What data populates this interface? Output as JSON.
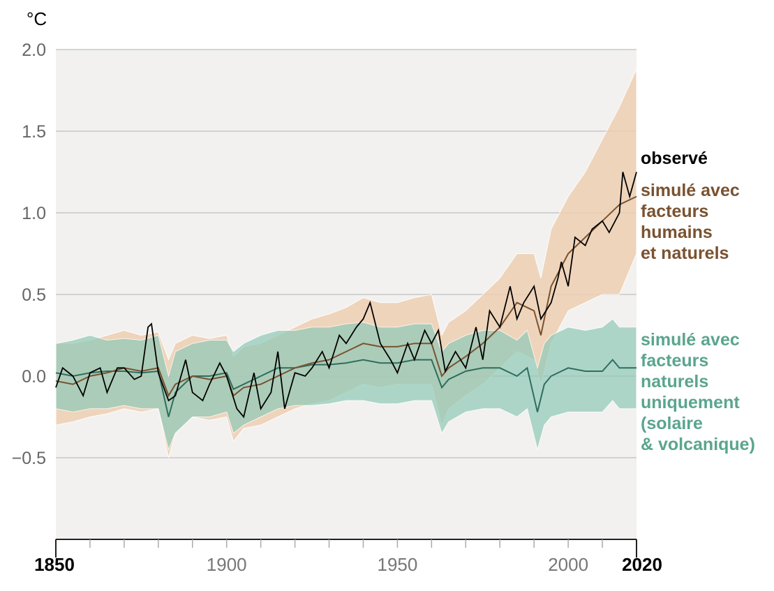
{
  "chart_data": {
    "type": "line",
    "unit": "°C",
    "xlim": [
      1850,
      2020
    ],
    "ylim": [
      -1.0,
      2.0
    ],
    "yticks": [
      {
        "v": 2.0,
        "label": "2.0"
      },
      {
        "v": 1.5,
        "label": "1.5"
      },
      {
        "v": 1.0,
        "label": "1.0"
      },
      {
        "v": 0.5,
        "label": "0.5"
      },
      {
        "v": 0.0,
        "label": "0.0"
      },
      {
        "v": -0.5,
        "label": "−0.5"
      }
    ],
    "xticks": [
      {
        "v": 1850,
        "label": "1850",
        "bold": true
      },
      {
        "v": 1900,
        "label": "1900"
      },
      {
        "v": 1950,
        "label": "1950"
      },
      {
        "v": 2000,
        "label": "2000"
      },
      {
        "v": 2020,
        "label": "2020",
        "bold": true
      }
    ],
    "grid": true,
    "colors": {
      "observed": "#000000",
      "human_natural": "#7a5230",
      "human_natural_band": "#eecfb2",
      "natural": "#2e6e5e",
      "natural_band": "#8fcab8",
      "natural_label": "#5aa58e",
      "human_label": "#7a5230",
      "background": "#f2f1ef"
    },
    "series": [
      {
        "name": "observé",
        "key": "observed",
        "x": [
          1850,
          1852,
          1855,
          1858,
          1860,
          1863,
          1865,
          1868,
          1870,
          1873,
          1875,
          1877,
          1878,
          1880,
          1883,
          1885,
          1888,
          1890,
          1893,
          1895,
          1898,
          1900,
          1903,
          1905,
          1908,
          1910,
          1913,
          1915,
          1917,
          1920,
          1923,
          1925,
          1928,
          1930,
          1933,
          1935,
          1938,
          1940,
          1942,
          1945,
          1948,
          1950,
          1953,
          1955,
          1958,
          1960,
          1962,
          1964,
          1967,
          1970,
          1973,
          1975,
          1977,
          1980,
          1983,
          1985,
          1987,
          1990,
          1992,
          1995,
          1997,
          1998,
          2000,
          2002,
          2005,
          2007,
          2010,
          2012,
          2015,
          2016,
          2018,
          2020
        ],
        "y": [
          -0.07,
          0.05,
          0.0,
          -0.12,
          0.02,
          0.05,
          -0.1,
          0.05,
          0.05,
          -0.02,
          0.0,
          0.3,
          0.32,
          0.02,
          -0.15,
          -0.12,
          0.1,
          -0.1,
          -0.15,
          -0.05,
          0.08,
          0.0,
          -0.2,
          -0.25,
          0.02,
          -0.2,
          -0.1,
          0.15,
          -0.2,
          0.02,
          0.0,
          0.05,
          0.15,
          0.05,
          0.25,
          0.2,
          0.3,
          0.35,
          0.45,
          0.2,
          0.1,
          0.02,
          0.2,
          0.1,
          0.28,
          0.2,
          0.28,
          0.03,
          0.15,
          0.05,
          0.3,
          0.1,
          0.4,
          0.3,
          0.55,
          0.35,
          0.45,
          0.55,
          0.35,
          0.45,
          0.6,
          0.7,
          0.55,
          0.85,
          0.8,
          0.9,
          0.95,
          0.88,
          1.0,
          1.25,
          1.1,
          1.25
        ]
      },
      {
        "name": "simulé avec facteurs humains et naturels",
        "key": "human_natural",
        "x": [
          1850,
          1855,
          1860,
          1865,
          1870,
          1875,
          1880,
          1883,
          1885,
          1890,
          1895,
          1900,
          1902,
          1905,
          1910,
          1915,
          1920,
          1925,
          1930,
          1935,
          1940,
          1945,
          1950,
          1955,
          1960,
          1963,
          1965,
          1970,
          1975,
          1980,
          1985,
          1990,
          1992,
          1995,
          2000,
          2005,
          2010,
          2015,
          2020
        ],
        "y": [
          -0.03,
          -0.05,
          0.0,
          0.02,
          0.05,
          0.03,
          0.05,
          -0.12,
          -0.05,
          0.0,
          -0.02,
          0.0,
          -0.12,
          -0.07,
          -0.05,
          0.0,
          0.05,
          0.08,
          0.1,
          0.15,
          0.2,
          0.18,
          0.18,
          0.2,
          0.2,
          0.0,
          0.05,
          0.12,
          0.2,
          0.3,
          0.45,
          0.4,
          0.25,
          0.55,
          0.75,
          0.85,
          0.95,
          1.05,
          1.1
        ],
        "low": [
          -0.3,
          -0.28,
          -0.25,
          -0.23,
          -0.2,
          -0.22,
          -0.2,
          -0.5,
          -0.35,
          -0.25,
          -0.27,
          -0.25,
          -0.4,
          -0.32,
          -0.3,
          -0.25,
          -0.2,
          -0.17,
          -0.15,
          -0.1,
          -0.05,
          -0.07,
          -0.05,
          -0.05,
          -0.05,
          -0.3,
          -0.2,
          -0.12,
          -0.05,
          0.05,
          0.15,
          0.1,
          -0.05,
          0.2,
          0.4,
          0.45,
          0.5,
          0.5,
          0.75
        ],
        "high": [
          0.2,
          0.2,
          0.22,
          0.25,
          0.28,
          0.25,
          0.27,
          0.1,
          0.2,
          0.25,
          0.23,
          0.25,
          0.12,
          0.18,
          0.2,
          0.25,
          0.3,
          0.35,
          0.38,
          0.42,
          0.48,
          0.45,
          0.45,
          0.48,
          0.5,
          0.25,
          0.33,
          0.4,
          0.5,
          0.6,
          0.75,
          0.75,
          0.6,
          0.9,
          1.1,
          1.25,
          1.45,
          1.65,
          1.88
        ]
      },
      {
        "name": "simulé avec facteurs naturels uniquement (solaire & volcanique)",
        "key": "natural",
        "x": [
          1850,
          1855,
          1860,
          1865,
          1870,
          1875,
          1880,
          1883,
          1885,
          1890,
          1895,
          1900,
          1902,
          1905,
          1910,
          1915,
          1920,
          1925,
          1930,
          1935,
          1940,
          1945,
          1950,
          1955,
          1960,
          1963,
          1965,
          1970,
          1975,
          1980,
          1985,
          1988,
          1991,
          1993,
          1995,
          2000,
          2005,
          2010,
          2013,
          2015,
          2020
        ],
        "y": [
          0.02,
          0.0,
          0.02,
          0.03,
          0.03,
          0.02,
          0.03,
          -0.25,
          -0.1,
          0.0,
          0.0,
          0.02,
          -0.08,
          -0.05,
          0.0,
          0.05,
          0.05,
          0.07,
          0.07,
          0.08,
          0.1,
          0.08,
          0.08,
          0.1,
          0.1,
          -0.07,
          -0.02,
          0.03,
          0.05,
          0.05,
          0.0,
          0.05,
          -0.22,
          -0.05,
          0.0,
          0.05,
          0.03,
          0.03,
          0.1,
          0.05,
          0.05
        ],
        "low": [
          -0.2,
          -0.22,
          -0.2,
          -0.2,
          -0.18,
          -0.2,
          -0.2,
          -0.45,
          -0.35,
          -0.25,
          -0.25,
          -0.22,
          -0.35,
          -0.3,
          -0.25,
          -0.2,
          -0.18,
          -0.18,
          -0.17,
          -0.15,
          -0.15,
          -0.17,
          -0.17,
          -0.15,
          -0.15,
          -0.35,
          -0.28,
          -0.22,
          -0.2,
          -0.2,
          -0.25,
          -0.2,
          -0.45,
          -0.3,
          -0.25,
          -0.22,
          -0.22,
          -0.22,
          -0.15,
          -0.2,
          -0.2
        ],
        "high": [
          0.2,
          0.22,
          0.25,
          0.22,
          0.23,
          0.22,
          0.25,
          0.0,
          0.15,
          0.2,
          0.22,
          0.22,
          0.15,
          0.2,
          0.25,
          0.28,
          0.28,
          0.3,
          0.3,
          0.32,
          0.33,
          0.3,
          0.3,
          0.32,
          0.32,
          0.15,
          0.2,
          0.25,
          0.28,
          0.28,
          0.22,
          0.28,
          0.05,
          0.2,
          0.25,
          0.3,
          0.28,
          0.3,
          0.35,
          0.3,
          0.3
        ]
      }
    ],
    "legend": {
      "observed": "observé",
      "human_natural": [
        "simulé avec",
        "facteurs",
        "humains",
        "et naturels"
      ],
      "natural": [
        "simulé avec",
        "facteurs",
        "naturels",
        "uniquement",
        "(solaire",
        "& volcanique)"
      ]
    }
  }
}
